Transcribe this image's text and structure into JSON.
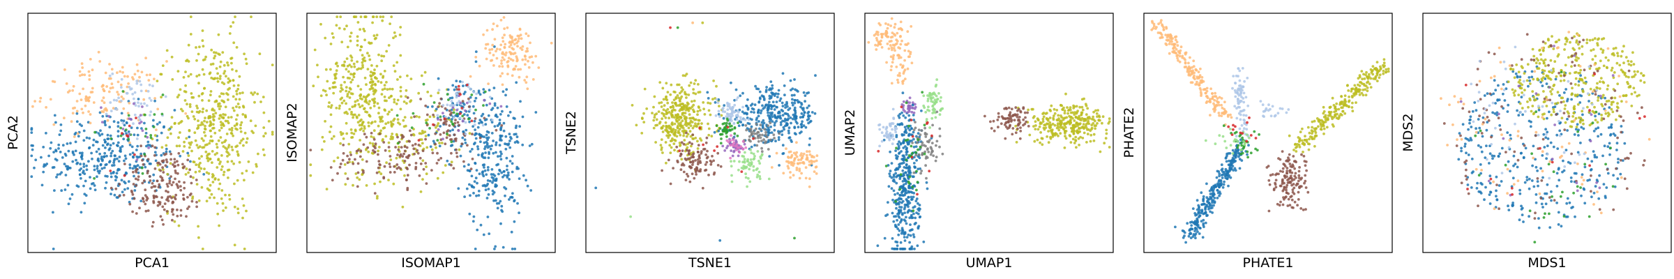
{
  "figure": {
    "panels": [
      {
        "xlabel": "PCA1",
        "ylabel": "PCA2"
      },
      {
        "xlabel": "ISOMAP1",
        "ylabel": "ISOMAP2"
      },
      {
        "xlabel": "TSNE1",
        "ylabel": "TSNE2"
      },
      {
        "xlabel": "UMAP1",
        "ylabel": "UMAP2"
      },
      {
        "xlabel": "PHATE1",
        "ylabel": "PHATE2"
      },
      {
        "xlabel": "MDS1",
        "ylabel": "MDS2"
      }
    ]
  },
  "chart_data": [
    {
      "type": "scatter",
      "title": "",
      "xlabel": "PCA1",
      "ylabel": "PCA2",
      "xticks": [],
      "yticks": [],
      "grid": false,
      "legend": false,
      "xlim": [
        0,
        1
      ],
      "ylim": [
        0,
        1
      ],
      "series": [
        {
          "color": "#1f77b4",
          "clusters": [
            {
              "cx": 0.32,
              "cy": 0.4,
              "sx": 0.14,
              "sy": 0.1,
              "n": 360
            }
          ]
        },
        {
          "color": "#ffbb78",
          "clusters": [
            {
              "cx": 0.3,
              "cy": 0.66,
              "sx": 0.12,
              "sy": 0.07,
              "n": 130
            }
          ]
        },
        {
          "color": "#aec7e8",
          "clusters": [
            {
              "cx": 0.44,
              "cy": 0.64,
              "sx": 0.06,
              "sy": 0.06,
              "n": 50
            }
          ]
        },
        {
          "color": "#bcbd22",
          "clusters": [
            {
              "cx": 0.75,
              "cy": 0.53,
              "sx": 0.09,
              "sy": 0.19,
              "n": 460
            }
          ]
        },
        {
          "color": "#8c564b",
          "clusters": [
            {
              "cx": 0.55,
              "cy": 0.28,
              "sx": 0.08,
              "sy": 0.08,
              "n": 170
            }
          ]
        },
        {
          "color": "#2ca02c",
          "clusters": [
            {
              "cx": 0.43,
              "cy": 0.5,
              "sx": 0.08,
              "sy": 0.08,
              "n": 22
            }
          ]
        },
        {
          "color": "#9467bd",
          "clusters": [
            {
              "cx": 0.42,
              "cy": 0.55,
              "sx": 0.07,
              "sy": 0.07,
              "n": 16
            }
          ]
        },
        {
          "color": "#d62728",
          "clusters": [
            {
              "cx": 0.4,
              "cy": 0.48,
              "sx": 0.08,
              "sy": 0.07,
              "n": 8
            }
          ]
        }
      ]
    },
    {
      "type": "scatter",
      "title": "",
      "xlabel": "ISOMAP1",
      "ylabel": "ISOMAP2",
      "xticks": [],
      "yticks": [],
      "grid": false,
      "legend": false,
      "xlim": [
        0,
        1
      ],
      "ylim": [
        0,
        1
      ],
      "series": [
        {
          "color": "#bcbd22",
          "clusters": [
            {
              "cx": 0.22,
              "cy": 0.68,
              "sx": 0.08,
              "sy": 0.17,
              "n": 360
            },
            {
              "cx": 0.4,
              "cy": 0.5,
              "sx": 0.1,
              "sy": 0.1,
              "n": 140
            }
          ]
        },
        {
          "color": "#1f77b4",
          "clusters": [
            {
              "cx": 0.75,
              "cy": 0.4,
              "sx": 0.06,
              "sy": 0.16,
              "n": 280
            },
            {
              "cx": 0.62,
              "cy": 0.58,
              "sx": 0.07,
              "sy": 0.08,
              "n": 90
            }
          ]
        },
        {
          "color": "#ffbb78",
          "clusters": [
            {
              "cx": 0.82,
              "cy": 0.84,
              "sx": 0.06,
              "sy": 0.06,
              "n": 130
            }
          ]
        },
        {
          "color": "#8c564b",
          "clusters": [
            {
              "cx": 0.35,
              "cy": 0.4,
              "sx": 0.12,
              "sy": 0.06,
              "n": 130
            },
            {
              "cx": 0.58,
              "cy": 0.52,
              "sx": 0.08,
              "sy": 0.08,
              "n": 60
            }
          ]
        },
        {
          "color": "#aec7e8",
          "clusters": [
            {
              "cx": 0.62,
              "cy": 0.62,
              "sx": 0.05,
              "sy": 0.05,
              "n": 40
            }
          ]
        },
        {
          "color": "#2ca02c",
          "clusters": [
            {
              "cx": 0.58,
              "cy": 0.56,
              "sx": 0.07,
              "sy": 0.06,
              "n": 25
            }
          ]
        },
        {
          "color": "#9467bd",
          "clusters": [
            {
              "cx": 0.6,
              "cy": 0.6,
              "sx": 0.06,
              "sy": 0.06,
              "n": 15
            }
          ]
        },
        {
          "color": "#d62728",
          "clusters": [
            {
              "cx": 0.56,
              "cy": 0.58,
              "sx": 0.08,
              "sy": 0.07,
              "n": 10
            }
          ]
        }
      ]
    },
    {
      "type": "scatter",
      "title": "",
      "xlabel": "TSNE1",
      "ylabel": "TSNE2",
      "xticks": [],
      "yticks": [],
      "grid": false,
      "legend": false,
      "xlim": [
        0,
        1
      ],
      "ylim": [
        0,
        1
      ],
      "series": [
        {
          "color": "#bcbd22",
          "clusters": [
            {
              "cx": 0.38,
              "cy": 0.56,
              "sx": 0.07,
              "sy": 0.07,
              "n": 340
            }
          ]
        },
        {
          "color": "#1f77b4",
          "clusters": [
            {
              "cx": 0.76,
              "cy": 0.57,
              "sx": 0.09,
              "sy": 0.06,
              "n": 340
            }
          ]
        },
        {
          "color": "#8c564b",
          "clusters": [
            {
              "cx": 0.44,
              "cy": 0.38,
              "sx": 0.04,
              "sy": 0.04,
              "n": 100
            }
          ]
        },
        {
          "color": "#ffbb78",
          "clusters": [
            {
              "cx": 0.86,
              "cy": 0.38,
              "sx": 0.04,
              "sy": 0.03,
              "n": 80
            }
          ]
        },
        {
          "color": "#98df8a",
          "clusters": [
            {
              "cx": 0.66,
              "cy": 0.37,
              "sx": 0.03,
              "sy": 0.03,
              "n": 60
            }
          ]
        },
        {
          "color": "#aec7e8",
          "clusters": [
            {
              "cx": 0.58,
              "cy": 0.59,
              "sx": 0.03,
              "sy": 0.03,
              "n": 60
            }
          ]
        },
        {
          "color": "#7f7f7f",
          "clusters": [
            {
              "cx": 0.7,
              "cy": 0.49,
              "sx": 0.03,
              "sy": 0.03,
              "n": 50
            }
          ]
        },
        {
          "color": "#2ca02c",
          "clusters": [
            {
              "cx": 0.57,
              "cy": 0.51,
              "sx": 0.02,
              "sy": 0.02,
              "n": 40
            }
          ]
        },
        {
          "color": "#9467bd",
          "clusters": [
            {
              "cx": 0.6,
              "cy": 0.44,
              "sx": 0.02,
              "sy": 0.02,
              "n": 40
            }
          ]
        },
        {
          "color": "#e377c2",
          "clusters": [
            {
              "cx": 0.61,
              "cy": 0.45,
              "sx": 0.02,
              "sy": 0.02,
              "n": 20
            }
          ]
        },
        {
          "color": "#d62728",
          "clusters": [
            {
              "cx": 0.54,
              "cy": 0.46,
              "sx": 0.07,
              "sy": 0.07,
              "n": 8
            }
          ]
        }
      ],
      "outliers": [
        {
          "x": 0.34,
          "y": 0.94,
          "color": "#d62728"
        },
        {
          "x": 0.37,
          "y": 0.94,
          "color": "#2ca02c"
        },
        {
          "x": 0.43,
          "y": 0.96,
          "color": "#ffbb78"
        },
        {
          "x": 0.47,
          "y": 0.96,
          "color": "#bcbd22"
        },
        {
          "x": 0.04,
          "y": 0.27,
          "color": "#1f77b4"
        },
        {
          "x": 0.18,
          "y": 0.15,
          "color": "#98df8a"
        },
        {
          "x": 0.54,
          "y": 0.05,
          "color": "#1f77b4"
        },
        {
          "x": 0.84,
          "y": 0.06,
          "color": "#2ca02c"
        }
      ]
    },
    {
      "type": "scatter",
      "title": "",
      "xlabel": "UMAP1",
      "ylabel": "UMAP2",
      "xticks": [],
      "yticks": [],
      "grid": false,
      "legend": false,
      "xlim": [
        0,
        1
      ],
      "ylim": [
        0,
        1
      ],
      "series": [
        {
          "color": "#1f77b4",
          "clusters": [
            {
              "cx": 0.16,
              "cy": 0.22,
              "sx": 0.03,
              "sy": 0.13,
              "n": 300
            },
            {
              "cx": 0.17,
              "cy": 0.45,
              "sx": 0.03,
              "sy": 0.08,
              "n": 100
            }
          ]
        },
        {
          "color": "#bcbd22",
          "clusters": [
            {
              "cx": 0.82,
              "cy": 0.54,
              "sx": 0.08,
              "sy": 0.04,
              "n": 300
            }
          ]
        },
        {
          "color": "#8c564b",
          "clusters": [
            {
              "cx": 0.6,
              "cy": 0.56,
              "sx": 0.04,
              "sy": 0.03,
              "n": 80
            }
          ]
        },
        {
          "color": "#ffbb78",
          "clusters": [
            {
              "cx": 0.1,
              "cy": 0.9,
              "sx": 0.04,
              "sy": 0.03,
              "n": 80
            },
            {
              "cx": 0.14,
              "cy": 0.78,
              "sx": 0.02,
              "sy": 0.05,
              "n": 40
            }
          ]
        },
        {
          "color": "#98df8a",
          "clusters": [
            {
              "cx": 0.27,
              "cy": 0.63,
              "sx": 0.02,
              "sy": 0.04,
              "n": 60
            }
          ]
        },
        {
          "color": "#aec7e8",
          "clusters": [
            {
              "cx": 0.1,
              "cy": 0.5,
              "sx": 0.02,
              "sy": 0.03,
              "n": 45
            }
          ]
        },
        {
          "color": "#7f7f7f",
          "clusters": [
            {
              "cx": 0.25,
              "cy": 0.45,
              "sx": 0.03,
              "sy": 0.05,
              "n": 60
            }
          ]
        },
        {
          "color": "#9467bd",
          "clusters": [
            {
              "cx": 0.17,
              "cy": 0.61,
              "sx": 0.015,
              "sy": 0.015,
              "n": 30
            }
          ]
        },
        {
          "color": "#2ca02c",
          "clusters": [
            {
              "cx": 0.18,
              "cy": 0.36,
              "sx": 0.03,
              "sy": 0.12,
              "n": 30
            }
          ]
        },
        {
          "color": "#d62728",
          "clusters": [
            {
              "cx": 0.2,
              "cy": 0.45,
              "sx": 0.05,
              "sy": 0.12,
              "n": 10
            }
          ]
        }
      ]
    },
    {
      "type": "scatter",
      "title": "",
      "xlabel": "PHATE1",
      "ylabel": "PHATE2",
      "xticks": [],
      "yticks": [],
      "grid": false,
      "legend": false,
      "xlim": [
        0,
        1
      ],
      "ylim": [
        0,
        1
      ],
      "series": [
        {
          "color": "#1f77b4",
          "clusters": [
            {
              "line": [
                0.18,
                0.06,
                0.4,
                0.46
              ],
              "spread": 0.018,
              "n": 280
            }
          ]
        },
        {
          "color": "#ffbb78",
          "clusters": [
            {
              "line": [
                0.05,
                0.96,
                0.33,
                0.56
              ],
              "spread": 0.015,
              "n": 210
            }
          ]
        },
        {
          "color": "#bcbd22",
          "clusters": [
            {
              "line": [
                0.62,
                0.44,
                0.96,
                0.78
              ],
              "spread": 0.02,
              "n": 260
            }
          ]
        },
        {
          "color": "#8c564b",
          "clusters": [
            {
              "cx": 0.58,
              "cy": 0.3,
              "sx": 0.04,
              "sy": 0.06,
              "n": 140
            }
          ]
        },
        {
          "color": "#aec7e8",
          "clusters": [
            {
              "line": [
                0.4,
                0.48,
                0.38,
                0.76
              ],
              "spread": 0.012,
              "n": 80
            },
            {
              "cx": 0.52,
              "cy": 0.6,
              "sx": 0.04,
              "sy": 0.02,
              "n": 20
            }
          ]
        },
        {
          "color": "#2ca02c",
          "clusters": [
            {
              "cx": 0.4,
              "cy": 0.46,
              "sx": 0.03,
              "sy": 0.03,
              "n": 30
            }
          ]
        },
        {
          "color": "#98df8a",
          "clusters": [
            {
              "cx": 0.36,
              "cy": 0.48,
              "sx": 0.04,
              "sy": 0.03,
              "n": 20
            }
          ]
        },
        {
          "color": "#d62728",
          "clusters": [
            {
              "cx": 0.4,
              "cy": 0.5,
              "sx": 0.04,
              "sy": 0.03,
              "n": 12
            }
          ]
        }
      ]
    },
    {
      "type": "scatter",
      "title": "",
      "xlabel": "MDS1",
      "ylabel": "MDS2",
      "xticks": [],
      "yticks": [],
      "grid": false,
      "legend": false,
      "xlim": [
        0,
        1
      ],
      "ylim": [
        0,
        1
      ],
      "series": [
        {
          "color": "#1f77b4",
          "clusters": [
            {
              "disc": [
                0.48,
                0.44,
                0.34,
                0.34
              ],
              "n": 360
            }
          ]
        },
        {
          "color": "#bcbd22",
          "clusters": [
            {
              "disc": [
                0.62,
                0.72,
                0.28,
                0.2
              ],
              "n": 360
            }
          ]
        },
        {
          "color": "#8c564b",
          "clusters": [
            {
              "disc": [
                0.5,
                0.5,
                0.42,
                0.42
              ],
              "n": 110
            }
          ]
        },
        {
          "color": "#ffbb78",
          "clusters": [
            {
              "disc": [
                0.48,
                0.52,
                0.44,
                0.44
              ],
              "n": 70
            }
          ]
        },
        {
          "color": "#aec7e8",
          "clusters": [
            {
              "disc": [
                0.44,
                0.6,
                0.3,
                0.3
              ],
              "n": 45
            }
          ]
        },
        {
          "color": "#2ca02c",
          "clusters": [
            {
              "disc": [
                0.5,
                0.4,
                0.36,
                0.36
              ],
              "n": 30
            }
          ]
        },
        {
          "color": "#9467bd",
          "clusters": [
            {
              "disc": [
                0.5,
                0.55,
                0.36,
                0.36
              ],
              "n": 20
            }
          ]
        },
        {
          "color": "#d62728",
          "clusters": [
            {
              "disc": [
                0.5,
                0.5,
                0.4,
                0.4
              ],
              "n": 12
            }
          ]
        }
      ]
    }
  ]
}
